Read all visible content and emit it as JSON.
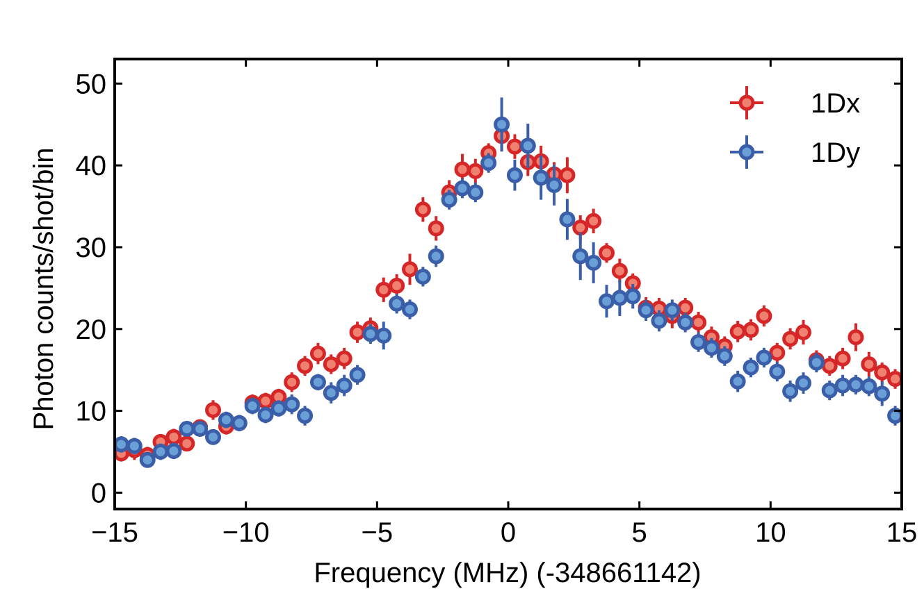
{
  "chart_data": {
    "type": "scatter",
    "title": "",
    "xlabel": "Frequency (MHz) (-348661142)",
    "ylabel": "Photon counts/shot/bin",
    "xlim": [
      -15,
      15
    ],
    "ylim": [
      -2,
      53
    ],
    "xticks": [
      -15,
      -10,
      -5,
      0,
      5,
      10,
      15
    ],
    "xtick_labels": [
      "−15",
      "−10",
      "−5",
      "0",
      "5",
      "10",
      "15"
    ],
    "yticks": [
      0,
      10,
      20,
      30,
      40,
      50
    ],
    "ytick_labels": [
      "0",
      "10",
      "20",
      "30",
      "40",
      "50"
    ],
    "grid": false,
    "legend_position": "top-right",
    "series": [
      {
        "name": "1Dx",
        "color": "#d62728",
        "inner_color": "#f08070",
        "points": [
          [
            -14.75,
            4.8,
            1.0
          ],
          [
            -14.25,
            5.2,
            1.2
          ],
          [
            -13.75,
            4.6,
            1.0
          ],
          [
            -13.25,
            6.2,
            0.9
          ],
          [
            -12.75,
            6.8,
            1.0
          ],
          [
            -12.25,
            6.0,
            0.9
          ],
          [
            -11.75,
            8.0,
            0.9
          ],
          [
            -11.25,
            10.1,
            1.2
          ],
          [
            -10.75,
            8.1,
            1.0
          ],
          [
            -10.25,
            8.5,
            1.0
          ],
          [
            -9.75,
            11.0,
            1.0
          ],
          [
            -9.25,
            11.2,
            1.0
          ],
          [
            -8.75,
            11.7,
            1.0
          ],
          [
            -8.25,
            13.5,
            1.2
          ],
          [
            -7.75,
            15.5,
            1.2
          ],
          [
            -7.25,
            17.0,
            1.3
          ],
          [
            -6.75,
            15.7,
            1.2
          ],
          [
            -6.25,
            16.4,
            1.3
          ],
          [
            -5.75,
            19.6,
            1.3
          ],
          [
            -5.25,
            20.1,
            1.3
          ],
          [
            -4.75,
            24.8,
            1.5
          ],
          [
            -4.25,
            25.3,
            1.4
          ],
          [
            -3.75,
            27.3,
            1.9
          ],
          [
            -3.25,
            34.6,
            1.5
          ],
          [
            -2.75,
            32.3,
            1.5
          ],
          [
            -2.25,
            36.7,
            1.5
          ],
          [
            -1.75,
            39.5,
            1.9
          ],
          [
            -1.25,
            39.3,
            1.5
          ],
          [
            -0.75,
            41.5,
            1.2
          ],
          [
            -0.25,
            43.6,
            1.9
          ],
          [
            0.25,
            42.3,
            1.5
          ],
          [
            0.75,
            40.4,
            1.7
          ],
          [
            1.25,
            40.5,
            1.9
          ],
          [
            1.75,
            38.9,
            1.5
          ],
          [
            2.25,
            38.8,
            2.2
          ],
          [
            2.75,
            32.4,
            1.5
          ],
          [
            3.25,
            33.2,
            1.5
          ],
          [
            3.75,
            29.3,
            1.2
          ],
          [
            4.25,
            27.1,
            1.5
          ],
          [
            4.75,
            25.6,
            1.2
          ],
          [
            5.25,
            22.6,
            1.3
          ],
          [
            5.75,
            22.5,
            1.3
          ],
          [
            6.25,
            21.6,
            1.5
          ],
          [
            6.75,
            22.6,
            1.2
          ],
          [
            7.25,
            20.8,
            1.3
          ],
          [
            7.75,
            19.0,
            1.3
          ],
          [
            8.25,
            17.9,
            1.2
          ],
          [
            8.75,
            19.7,
            1.3
          ],
          [
            9.25,
            19.9,
            1.3
          ],
          [
            9.75,
            21.6,
            1.3
          ],
          [
            10.25,
            17.1,
            1.2
          ],
          [
            10.75,
            18.8,
            1.3
          ],
          [
            11.25,
            19.6,
            1.5
          ],
          [
            11.75,
            16.2,
            1.2
          ],
          [
            12.25,
            15.5,
            1.2
          ],
          [
            12.75,
            16.4,
            1.3
          ],
          [
            13.25,
            19.0,
            1.7
          ],
          [
            13.75,
            15.7,
            1.5
          ],
          [
            14.25,
            14.7,
            1.2
          ],
          [
            14.75,
            13.9,
            1.2
          ]
        ]
      },
      {
        "name": "1Dy",
        "color": "#3a5fa8",
        "inner_color": "#6a9fd8",
        "points": [
          [
            -14.75,
            5.9,
            1.0
          ],
          [
            -14.25,
            5.7,
            1.0
          ],
          [
            -13.75,
            4.0,
            0.9
          ],
          [
            -13.25,
            5.0,
            1.0
          ],
          [
            -12.75,
            5.1,
            1.0
          ],
          [
            -12.25,
            7.8,
            0.9
          ],
          [
            -11.75,
            7.8,
            0.9
          ],
          [
            -11.25,
            6.8,
            0.9
          ],
          [
            -10.75,
            8.9,
            1.0
          ],
          [
            -10.25,
            8.5,
            1.0
          ],
          [
            -9.75,
            10.6,
            1.0
          ],
          [
            -9.25,
            9.5,
            1.0
          ],
          [
            -8.75,
            10.3,
            1.0
          ],
          [
            -8.25,
            10.8,
            1.2
          ],
          [
            -7.75,
            9.4,
            1.2
          ],
          [
            -7.25,
            13.5,
            1.0
          ],
          [
            -6.75,
            12.2,
            1.3
          ],
          [
            -6.25,
            13.1,
            1.3
          ],
          [
            -5.75,
            14.4,
            1.2
          ],
          [
            -5.25,
            19.4,
            1.2
          ],
          [
            -4.75,
            19.2,
            1.7
          ],
          [
            -4.25,
            23.1,
            1.2
          ],
          [
            -3.75,
            22.4,
            1.2
          ],
          [
            -3.25,
            26.4,
            1.2
          ],
          [
            -2.75,
            28.9,
            1.3
          ],
          [
            -2.25,
            35.8,
            1.2
          ],
          [
            -1.75,
            37.2,
            1.2
          ],
          [
            -1.25,
            36.7,
            1.2
          ],
          [
            -0.75,
            40.3,
            1.2
          ],
          [
            -0.25,
            45.0,
            3.3
          ],
          [
            0.25,
            38.8,
            1.9
          ],
          [
            0.75,
            42.4,
            2.7
          ],
          [
            1.25,
            38.5,
            2.7
          ],
          [
            1.75,
            37.6,
            2.5
          ],
          [
            2.25,
            33.4,
            2.5
          ],
          [
            2.75,
            28.9,
            2.9
          ],
          [
            3.25,
            28.1,
            2.5
          ],
          [
            3.75,
            23.4,
            2.0
          ],
          [
            4.25,
            23.8,
            2.2
          ],
          [
            4.75,
            24.0,
            1.5
          ],
          [
            5.25,
            22.3,
            1.3
          ],
          [
            5.75,
            21.0,
            1.3
          ],
          [
            6.25,
            22.3,
            1.3
          ],
          [
            6.75,
            20.8,
            1.2
          ],
          [
            7.25,
            18.4,
            1.2
          ],
          [
            7.75,
            17.7,
            1.2
          ],
          [
            8.25,
            16.7,
            1.2
          ],
          [
            8.75,
            13.6,
            1.3
          ],
          [
            9.25,
            15.3,
            1.2
          ],
          [
            9.75,
            16.5,
            1.2
          ],
          [
            10.25,
            14.8,
            1.2
          ],
          [
            10.75,
            12.4,
            1.3
          ],
          [
            11.25,
            13.4,
            1.3
          ],
          [
            11.75,
            15.9,
            1.2
          ],
          [
            12.25,
            12.5,
            1.2
          ],
          [
            12.75,
            13.1,
            1.3
          ],
          [
            13.25,
            13.2,
            1.2
          ],
          [
            13.75,
            13.0,
            1.2
          ],
          [
            14.25,
            12.1,
            1.5
          ],
          [
            14.75,
            9.4,
            1.2
          ]
        ]
      }
    ]
  }
}
